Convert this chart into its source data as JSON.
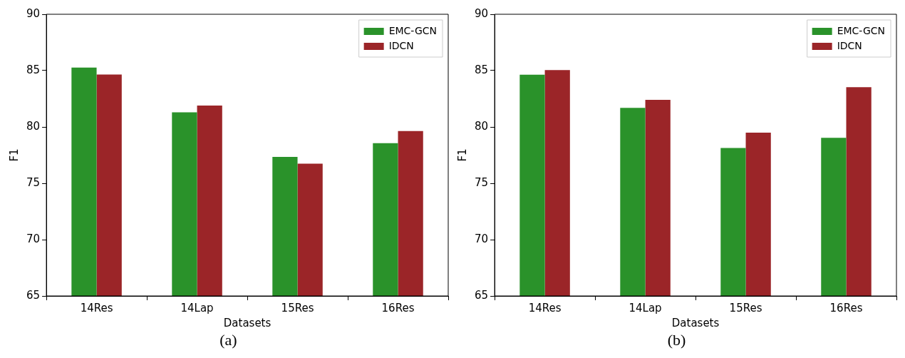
{
  "chart_data": [
    {
      "type": "bar",
      "xlabel": "Datasets",
      "ylabel": "F1",
      "categories": [
        "14Res",
        "14Lap",
        "15Res",
        "16Res"
      ],
      "ylim": [
        65,
        90
      ],
      "yticks": [
        65,
        70,
        75,
        80,
        85,
        90
      ],
      "grid": false,
      "legend": "top right",
      "annotations": [
        "(a)"
      ],
      "series": [
        {
          "name": "EMC-GCN",
          "color": "#2a922a",
          "values": [
            85.27,
            81.3,
            77.34,
            78.56
          ]
        },
        {
          "name": "IDCN",
          "color": "#9b2528",
          "values": [
            84.65,
            81.9,
            76.74,
            79.63
          ]
        }
      ]
    },
    {
      "type": "bar",
      "xlabel": "Datasets",
      "ylabel": "F1",
      "categories": [
        "14Res",
        "14Lap",
        "15Res",
        "16Res"
      ],
      "ylim": [
        65,
        90
      ],
      "yticks": [
        65,
        70,
        75,
        80,
        85,
        90
      ],
      "grid": false,
      "legend": "top right",
      "annotations": [
        "(b)"
      ],
      "series": [
        {
          "name": "EMC-GCN",
          "color": "#2a922a",
          "values": [
            84.63,
            81.7,
            78.13,
            79.03
          ]
        },
        {
          "name": "IDCN",
          "color": "#9b2528",
          "values": [
            85.05,
            82.4,
            79.5,
            83.53
          ]
        }
      ]
    }
  ]
}
